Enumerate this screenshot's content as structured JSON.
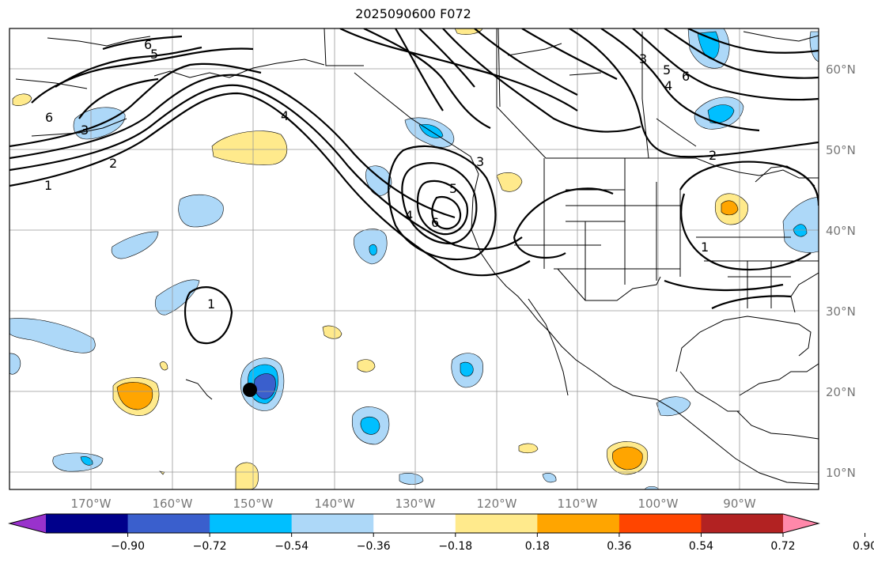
{
  "title": "2025090600 F072",
  "lon_labels": [
    "170°W",
    "160°W",
    "150°W",
    "140°W",
    "130°W",
    "120°W",
    "110°W",
    "100°W",
    "90°W"
  ],
  "lat_labels": [
    "60°N",
    "50°N",
    "40°N",
    "30°N",
    "20°N",
    "10°N"
  ],
  "colorbar": {
    "tick_labels": [
      "−0.90",
      "−0.72",
      "−0.54",
      "−0.36",
      "−0.18",
      "0.18",
      "0.36",
      "0.54",
      "0.72",
      "0.90"
    ],
    "colors": [
      "#9932cc",
      "#00008b",
      "#3a5fcd",
      "#00bfff",
      "#add8f8",
      "#ffffff",
      "#ffea8c",
      "#ffa500",
      "#ff4500",
      "#b22222",
      "#ff88aa"
    ]
  },
  "contour_labels": {
    "c6_west": "6",
    "c5_west": "5",
    "c6_nw": "6",
    "c3_west": "3",
    "c2_west": "2",
    "c1_west": "1",
    "c4_mid": "4",
    "c1_sub": "1",
    "c5_low": "5",
    "c4_low": "4",
    "c6_low": "6",
    "c3_coast": "3",
    "c3_ne": "3",
    "c5_ne": "5",
    "c6_ne": "6",
    "c4_ne": "4",
    "c2_ne": "2",
    "c1_ne": "1"
  }
}
